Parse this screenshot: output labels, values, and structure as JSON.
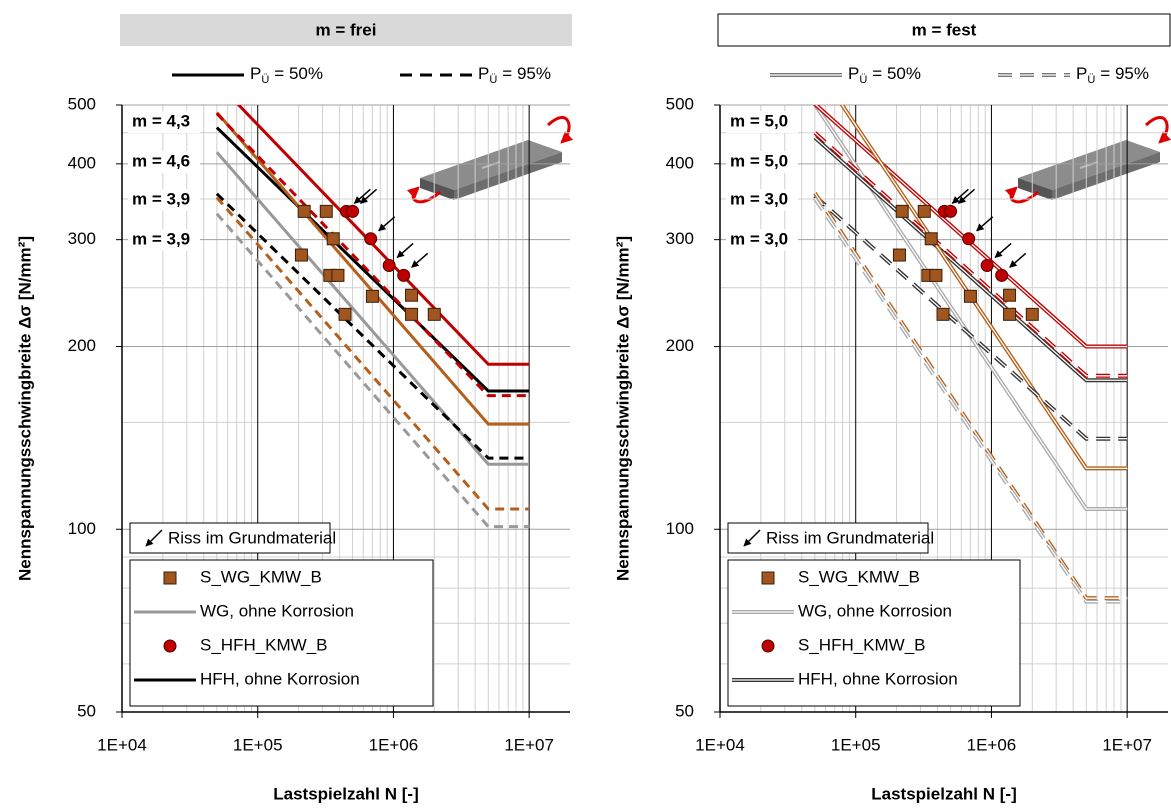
{
  "chart_data": [
    {
      "type": "line",
      "title": "m = frei",
      "title_box_color": "#d9d9d9",
      "xlabel": "Lastspielzahl N [-]",
      "ylabel": "Nennspannungsschwingbreite Δσ [N/mm²]",
      "xscale": "log",
      "yscale": "log",
      "grid": true,
      "double_lines": false,
      "xlim": [
        10000,
        20000000
      ],
      "ylim": [
        50,
        500
      ],
      "xticks": [
        {
          "value": 10000,
          "label": "1E+04"
        },
        {
          "value": 100000,
          "label": "1E+05"
        },
        {
          "value": 1000000,
          "label": "1E+06"
        },
        {
          "value": 10000000,
          "label": "1E+07"
        }
      ],
      "yticks": [
        50,
        100,
        200,
        300,
        400,
        500
      ],
      "line_styles": [
        {
          "symbol": "P",
          "subscript": "Ü",
          "text": "= 50%",
          "dash": false
        },
        {
          "symbol": "P",
          "subscript": "Ü",
          "text": "= 95%",
          "dash": true
        }
      ],
      "crack_note": "Riss im Grundmaterial",
      "annotations": [
        {
          "text": "m = 4,3",
          "color": "#c00000"
        },
        {
          "text": "m = 4,6",
          "color": "#000000"
        },
        {
          "text": "m = 3,9",
          "color": "#a0561e"
        },
        {
          "text": "m = 3,9",
          "color": "#999999"
        }
      ],
      "series": [
        {
          "name": "S_WG_KMW_B",
          "marker": "square",
          "color": "#a0561e",
          "x": [
            210000,
            220000,
            320000,
            360000,
            340000,
            390000,
            440000,
            700000,
            1360000,
            1360000,
            2000000
          ],
          "values": [
            283,
            334,
            334,
            301,
            262,
            262,
            226,
            242,
            243,
            226,
            226
          ]
        },
        {
          "name": "WG, ohne Korrosion",
          "color": "#999999",
          "dash": false,
          "x": [
            50000,
            5000000,
            10000000
          ],
          "values": [
            418,
            128,
            128
          ]
        },
        {
          "name": "S_HFH_KMW_B",
          "marker": "circle",
          "color": "#c00000",
          "x": [
            450000,
            500000,
            680000,
            930000,
            1190000
          ],
          "values": [
            334,
            334,
            301,
            272,
            262
          ]
        },
        {
          "name": "HFH, ohne Korrosion",
          "color": "#000000",
          "dash": false,
          "x": [
            50000,
            5000000,
            10000000
          ],
          "values": [
            459,
            169,
            169
          ]
        },
        {
          "color": "#c00000",
          "dash": false,
          "x": [
            50000,
            5000000,
            10000000
          ],
          "values": [
            545,
            187,
            187
          ]
        },
        {
          "color": "#b4601c",
          "dash": false,
          "x": [
            50000,
            5000000,
            10000000
          ],
          "values": [
            486,
            149,
            149
          ]
        },
        {
          "color": "#c00000",
          "dash": true,
          "x": [
            50000,
            5000000,
            10000000
          ],
          "values": [
            484,
            166,
            166
          ]
        },
        {
          "color": "#000000",
          "dash": true,
          "x": [
            50000,
            5000000,
            10000000
          ],
          "values": [
            357,
            131,
            131
          ]
        },
        {
          "color": "#b4601c",
          "dash": true,
          "x": [
            50000,
            5000000,
            10000000
          ],
          "values": [
            352,
            108,
            108
          ]
        },
        {
          "color": "#999999",
          "dash": true,
          "x": [
            50000,
            5000000,
            10000000
          ],
          "values": [
            331,
            101,
            101
          ]
        }
      ]
    },
    {
      "type": "line",
      "title": "m = fest",
      "title_box_color": "#ffffff",
      "xlabel": "Lastspielzahl N [-]",
      "ylabel": "Nennspannungsschwingbreite Δσ [N/mm²]",
      "xscale": "log",
      "yscale": "log",
      "grid": true,
      "double_lines": true,
      "xlim": [
        10000,
        20000000
      ],
      "ylim": [
        50,
        500
      ],
      "xticks": [
        {
          "value": 10000,
          "label": "1E+04"
        },
        {
          "value": 100000,
          "label": "1E+05"
        },
        {
          "value": 1000000,
          "label": "1E+06"
        },
        {
          "value": 10000000,
          "label": "1E+07"
        }
      ],
      "yticks": [
        50,
        100,
        200,
        300,
        400,
        500
      ],
      "line_styles": [
        {
          "symbol": "P",
          "subscript": "Ü",
          "text": "= 50%",
          "dash": false
        },
        {
          "symbol": "P",
          "subscript": "Ü",
          "text": "= 95%",
          "dash": true
        }
      ],
      "crack_note": "Riss im Grundmaterial",
      "annotations": [
        {
          "text": "m = 5,0",
          "color": "#c00000"
        },
        {
          "text": "m = 5,0",
          "color": "#000000"
        },
        {
          "text": "m = 3,0",
          "color": "#a0561e"
        },
        {
          "text": "m = 3,0",
          "color": "#999999"
        }
      ],
      "series": [
        {
          "name": "S_WG_KMW_B",
          "marker": "square",
          "color": "#a0561e",
          "x": [
            210000,
            220000,
            320000,
            360000,
            340000,
            390000,
            440000,
            700000,
            1360000,
            1360000,
            2000000
          ],
          "values": [
            283,
            334,
            334,
            301,
            262,
            262,
            226,
            242,
            243,
            226,
            226
          ]
        },
        {
          "name": "WG, ohne Korrosion",
          "color": "#aaaaaa",
          "dash": false,
          "x": [
            50000,
            5000000,
            10000000
          ],
          "values": [
            501,
            108,
            108
          ]
        },
        {
          "name": "S_HFH_KMW_B",
          "marker": "circle",
          "color": "#c00000",
          "x": [
            450000,
            500000,
            680000,
            930000,
            1190000
          ],
          "values": [
            334,
            334,
            301,
            272,
            262
          ]
        },
        {
          "name": "HFH, ohne Korrosion",
          "color": "#333333",
          "dash": false,
          "x": [
            50000,
            5000000,
            10000000
          ],
          "values": [
            442,
            176,
            176
          ]
        },
        {
          "color": "#c00000",
          "dash": false,
          "x": [
            50000,
            5000000,
            10000000
          ],
          "values": [
            502,
            200,
            200
          ]
        },
        {
          "color": "#b4601c",
          "dash": false,
          "x": [
            50000,
            5000000,
            10000000
          ],
          "values": [
            583,
            126,
            126
          ]
        },
        {
          "color": "#c00000",
          "dash": true,
          "x": [
            50000,
            5000000,
            10000000
          ],
          "values": [
            450,
            179,
            179
          ]
        },
        {
          "color": "#333333",
          "dash": true,
          "x": [
            50000,
            5000000,
            10000000
          ],
          "values": [
            354,
            141,
            141
          ]
        },
        {
          "color": "#b4601c",
          "dash": true,
          "x": [
            50000,
            5000000,
            10000000
          ],
          "values": [
            358,
            77,
            77
          ]
        },
        {
          "color": "#aaaaaa",
          "dash": true,
          "x": [
            50000,
            5000000,
            10000000
          ],
          "values": [
            351,
            76,
            76
          ]
        }
      ]
    }
  ]
}
